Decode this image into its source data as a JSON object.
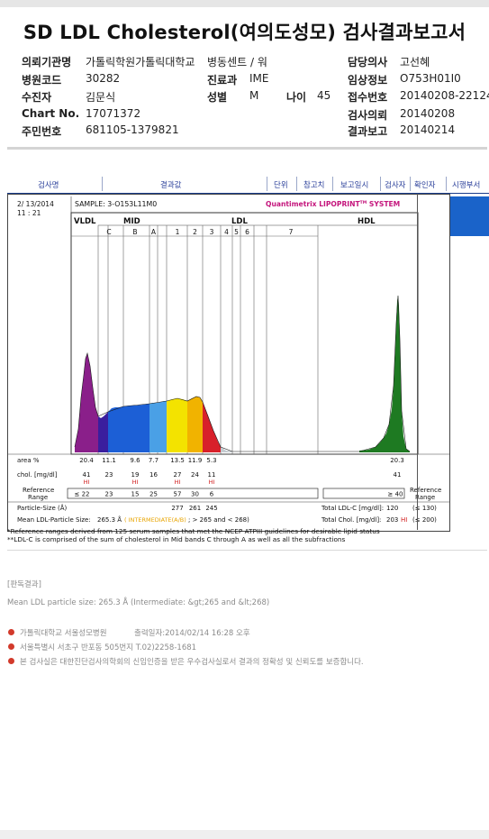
{
  "report": {
    "title": "SD LDL Cholesterol(여의도성모) 검사결과보고서",
    "fields": {
      "institution_label": "의뢰기관명",
      "institution_value": "가톨릭학원가톨릭대학교",
      "ward_label": "병동센트 / 워",
      "hospital_code_label": "병원코드",
      "hospital_code_value": "30282",
      "dept_label": "진료과",
      "dept_value": "IME",
      "patient_label": "수진자",
      "patient_value": "김문식",
      "sex_label": "성별",
      "sex_value": "M",
      "age_label": "나이",
      "age_value": "45",
      "chart_label": "Chart No.",
      "chart_value": "17071372",
      "id_label": "주민번호",
      "id_value": "681105-1379821",
      "doctor_label": "담당의사",
      "doctor_value": "고선혜",
      "clinical_label": "임상정보",
      "clinical_value": "O753H01I0",
      "receipt_label": "접수번호",
      "receipt_value": "20140208-22124",
      "request_label": "검사의뢰",
      "request_value": "20140208",
      "result_label": "결과보고",
      "result_value": "20140214"
    }
  },
  "table_header": {
    "test_name": "검사명",
    "result": "결과값",
    "unit": "단위",
    "ref": "참고치",
    "report_date": "보고일시",
    "tester": "검사자",
    "verifier": "확인자",
    "department": "시행부서"
  },
  "lipoprint": {
    "date": "2/ 13/2014",
    "time": "11 : 21",
    "sample": "SAMPLE:   3-O153L11M0",
    "brand_prefix": "Quantimetrix LIPOPRINT",
    "brand_tm": "TM",
    "brand_suffix": " SYSTEM",
    "groups": {
      "vldl": "VLDL",
      "mid": "MID",
      "ldl": "LDL",
      "hdl": "HDL"
    },
    "bands": [
      "C",
      "B",
      "A",
      "1",
      "2",
      "3",
      "4",
      "5",
      "6",
      "7"
    ],
    "area_label": "area %",
    "area_values": [
      "20.4",
      "11.1",
      "9.6",
      "7.7",
      "13.5",
      "11.9",
      "5.3",
      "20.3"
    ],
    "chol_label": "chol. [mg/dl]",
    "chol_values": [
      "41",
      "23",
      "19",
      "16",
      "27",
      "24",
      "11",
      "41"
    ],
    "hi_label": "HI",
    "ref_label_1": "Reference",
    "ref_label_2": "Range",
    "ref_values": [
      "≤ 22",
      "23",
      "15",
      "25",
      "57",
      "30",
      "6",
      "≥ 40"
    ],
    "particle_label": "Particle-Size (Å)",
    "particle_values": [
      "277",
      "261",
      "245"
    ],
    "mean_label": "Mean LDL-Particle Size:",
    "mean_value": "265.3 Å",
    "mean_note": "( INTERMEDIATE(A/B)",
    "mean_note2": "; > 265 and < 268)",
    "total_ldl_label": "Total LDL-C [mg/dl]:",
    "total_ldl_value": "120",
    "total_ldl_ref": "(≤ 130)",
    "total_chol_label": "Total Chol. [mg/dl]:",
    "total_chol_value": "203",
    "total_chol_flag": "HI",
    "total_chol_ref": "(≤ 200)"
  },
  "notes": {
    "line1": "*Reference ranges derived from 125 serum samples that met the NCEP ATPIII guidelines for desirable lipid status",
    "line2": "**LDL-C is comprised of the sum of cholesterol in Mid bands C through A as well as all the subfractions"
  },
  "interpretation": {
    "heading": "[판독결과]",
    "text": "Mean LDL particle size: 265.3 Å (Intermediate: &gt;265 and &lt;268)"
  },
  "footer_info": {
    "line1": "가톨릭대학교 서울성모병원",
    "printed": "출력일자:2014/02/14 16:28 오후",
    "line2": "서울특별시 서초구 반포동 505번지 T.02)2258-1681",
    "line3": "본 검사실은 대한진단검사의학회의 신임인증을 받은 우수검사실로서 결과의 정확성 및 신뢰도를 보증합니다."
  },
  "colors": {
    "vldl": "#8a1f8a",
    "midC": "#3a1e9e",
    "midB": "#1c5fd6",
    "midA": "#4aa0e6",
    "ldl1": "#f3e300",
    "ldl2": "#f1b300",
    "ldl3": "#d8202a",
    "hdl": "#1e7a22",
    "hi": "#d01818",
    "link": "#2a3f9a"
  }
}
